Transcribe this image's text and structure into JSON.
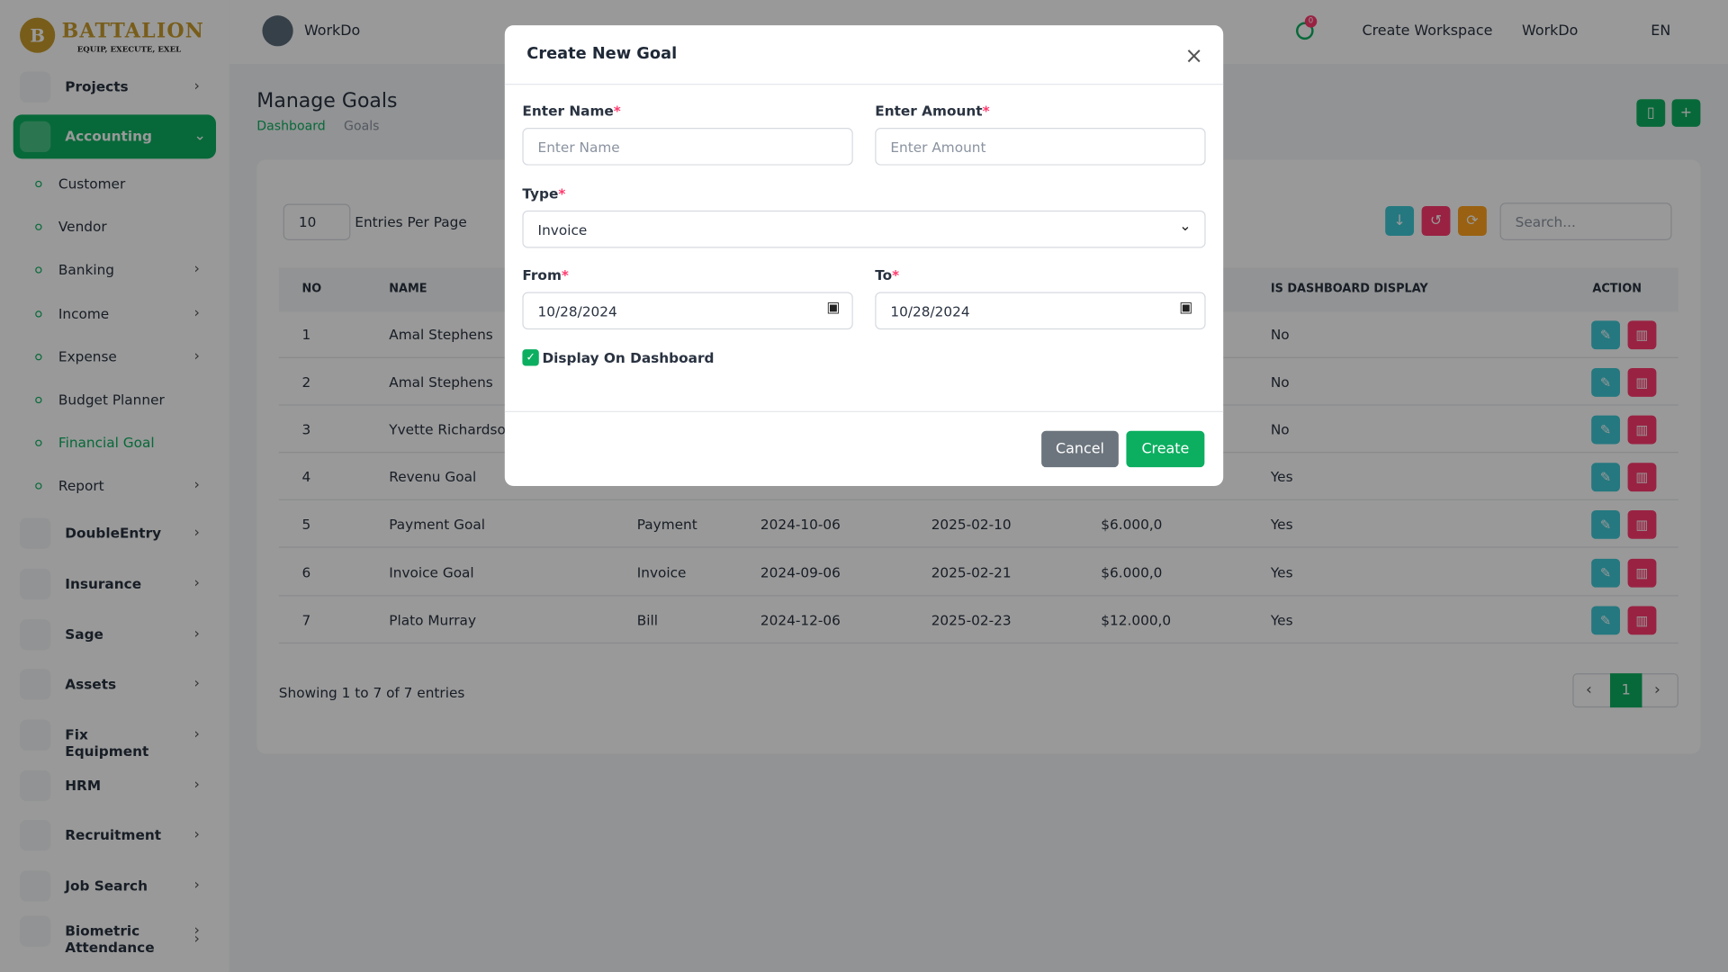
{
  "brand": {
    "name": "BATTALION",
    "tagline": "EQUIP, EXECUTE, EXEL",
    "initial": "B"
  },
  "sidebar": {
    "items": [
      {
        "label": "Projects",
        "expandable": true
      },
      {
        "label": "Accounting",
        "expandable": true,
        "open": true
      }
    ],
    "submenu": [
      {
        "label": "Customer"
      },
      {
        "label": "Vendor"
      },
      {
        "label": "Banking",
        "expandable": true
      },
      {
        "label": "Income",
        "expandable": true
      },
      {
        "label": "Expense",
        "expandable": true
      },
      {
        "label": "Budget Planner"
      },
      {
        "label": "Financial Goal",
        "active": true
      },
      {
        "label": "Report",
        "expandable": true
      }
    ],
    "more": [
      {
        "label": "DoubleEntry"
      },
      {
        "label": "Insurance"
      },
      {
        "label": "Sage"
      },
      {
        "label": "Assets"
      },
      {
        "label": "Fix Equipment"
      },
      {
        "label": "HRM"
      },
      {
        "label": "Recruitment"
      },
      {
        "label": "Job Search"
      },
      {
        "label": "Biometric Attendance"
      }
    ]
  },
  "topbar": {
    "workspace": "WorkDo",
    "notifications": "0",
    "create_workspace": "Create Workspace",
    "workspace_menu": "WorkDo",
    "language": "EN"
  },
  "page": {
    "title": "Manage Goals",
    "breadcrumb": [
      "Dashboard",
      "Goals"
    ]
  },
  "table": {
    "entries": "10",
    "entries_label": "Entries Per Page",
    "search_placeholder": "Search...",
    "header": {
      "no": "NO",
      "name": "NAME",
      "dashboard": "IS DASHBOARD DISPLAY",
      "action": "ACTION"
    },
    "rows": [
      {
        "no": "1",
        "name": "Amal Stephens",
        "dashboard": "No"
      },
      {
        "no": "2",
        "name": "Amal Stephens",
        "dashboard": "No"
      },
      {
        "no": "3",
        "name": "Yvette Richardson",
        "dashboard": "No"
      },
      {
        "no": "4",
        "name": "Revenu Goal",
        "dashboard": "Yes"
      },
      {
        "no": "5",
        "name": "Payment Goal",
        "type": "Payment",
        "from": "2024-10-06",
        "to": "2025-02-10",
        "amount": "$6.000,0",
        "dashboard": "Yes"
      },
      {
        "no": "6",
        "name": "Invoice Goal",
        "type": "Invoice",
        "from": "2024-09-06",
        "to": "2025-02-21",
        "amount": "$6.000,0",
        "dashboard": "Yes"
      },
      {
        "no": "7",
        "name": "Plato Murray",
        "type": "Bill",
        "from": "2024-12-06",
        "to": "2025-02-23",
        "amount": "$12.000,0",
        "dashboard": "Yes"
      }
    ],
    "footer": "Showing 1 to 7 of 7 entries",
    "page": "1"
  },
  "modal": {
    "title": "Create New Goal",
    "required_mark": "*",
    "fields": {
      "name": {
        "label": "Enter Name",
        "placeholder": "Enter Name"
      },
      "amount": {
        "label": "Enter Amount",
        "placeholder": "Enter Amount"
      },
      "type": {
        "label": "Type",
        "value": "Invoice"
      },
      "from": {
        "label": "From",
        "value": "10/28/2024"
      },
      "to": {
        "label": "To",
        "value": "10/28/2024"
      }
    },
    "checkbox": {
      "label": "Display On Dashboard",
      "checked": true
    },
    "cancel": "Cancel",
    "submit": "Create"
  }
}
